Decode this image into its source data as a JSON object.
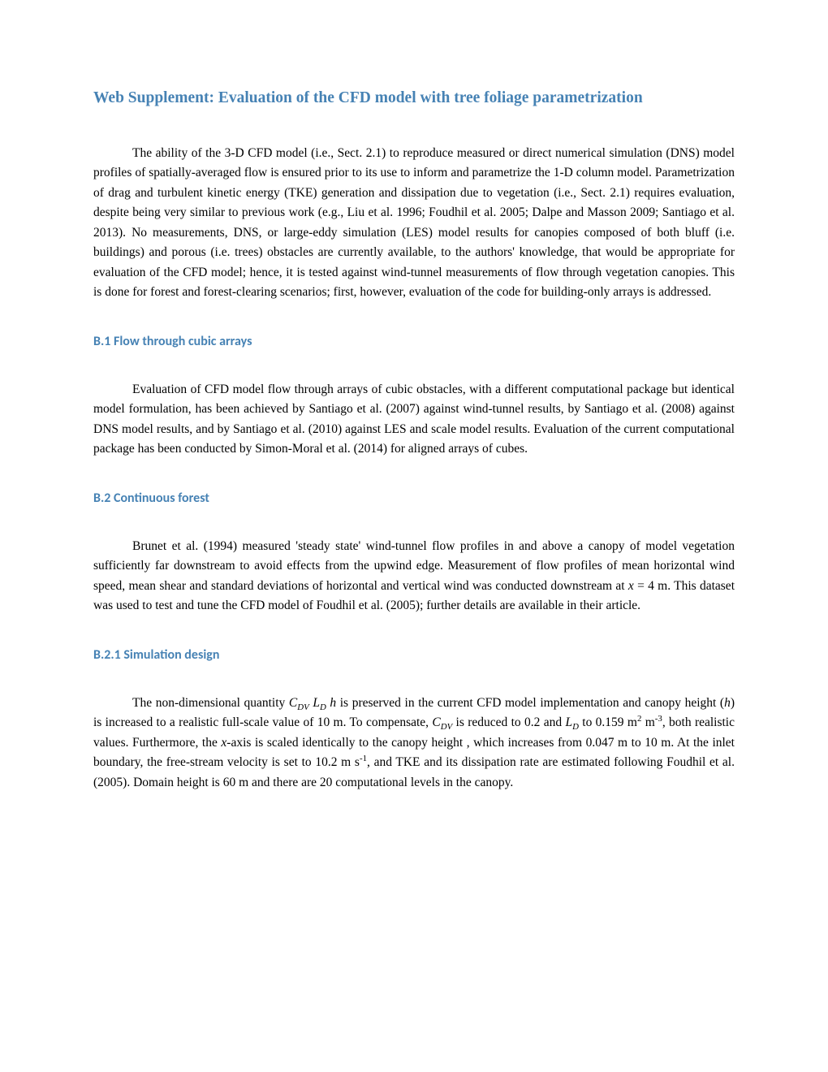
{
  "mainTitle": "Web Supplement: Evaluation of the CFD model with tree foliage parametrization",
  "intro": {
    "text": "The ability of the 3-D CFD model (i.e., Sect. 2.1) to reproduce measured or direct numerical simulation (DNS) model profiles of spatially-averaged flow is ensured prior to its use to inform and parametrize the 1-D column model. Parametrization of drag and turbulent kinetic energy (TKE) generation and dissipation due to vegetation (i.e., Sect. 2.1) requires evaluation, despite being very similar to previous work (e.g., Liu et al. 1996; Foudhil et al. 2005; Dalpe and Masson 2009; Santiago et al. 2013). No measurements, DNS, or large-eddy simulation (LES) model results for canopies composed of both bluff (i.e. buildings) and porous (i.e. trees) obstacles are currently available, to the authors' knowledge, that would be appropriate for evaluation of the CFD model; hence, it is tested against wind-tunnel measurements of flow through vegetation canopies. This is done for forest and forest-clearing scenarios; first, however, evaluation of the code for building-only arrays is addressed."
  },
  "sectionB1": {
    "title": "B.1 Flow through cubic arrays",
    "text": "Evaluation of CFD model flow through arrays of cubic obstacles, with a different computational package but identical model formulation, has been achieved by Santiago et al. (2007) against wind-tunnel results, by Santiago et al. (2008) against DNS model results, and by Santiago et al. (2010) against LES and scale model results. Evaluation of the current computational package has been conducted by Simon-Moral et al. (2014) for aligned arrays of cubes."
  },
  "sectionB2": {
    "title": "B.2 Continuous forest",
    "text_pre": "Brunet et al. (1994) measured 'steady state' wind-tunnel flow profiles in and above a canopy of model vegetation sufficiently far downstream to avoid effects from the upwind edge.  Measurement of flow profiles of mean horizontal wind speed, mean shear and standard deviations of horizontal and vertical wind was conducted downstream at ",
    "x_var": "x",
    "text_post": " = 4 m. This dataset was used to test and tune the CFD model of Foudhil et al. (2005); further details are available in their article."
  },
  "sectionB21": {
    "title": "B.2.1 Simulation design",
    "parts": {
      "p1": "The non-dimensional quantity ",
      "cdv1": "C",
      "cdv1_sub": "DV",
      "p2": " ",
      "ld1": "L",
      "ld1_sub": "D",
      "p3": " ",
      "h1": "h",
      "p4": " is preserved in the current CFD model implementation and canopy height (",
      "h2": "h",
      "p5": ") is increased to a realistic full-scale value of 10 m. To compensate, ",
      "cdv2": "C",
      "cdv2_sub": "DV",
      "p6": " is reduced to 0.2 and ",
      "ld2": "L",
      "ld2_sub": "D",
      "p7": " to 0.159 m",
      "sup1": "2",
      "p8": " m",
      "sup2": "-3",
      "p9": ", both realistic values. Furthermore, the ",
      "x2": "x",
      "p10": "-axis is scaled identically to the canopy height , which increases from 0.047 m to 10 m. At the inlet boundary, the free-stream velocity is set to 10.2 m s",
      "sup3": "-1",
      "p11": ", and TKE and its dissipation rate are estimated following Foudhil et al. (2005). Domain height is 60 m and there are 20 computational levels in the canopy."
    }
  },
  "colors": {
    "heading": "#4682b4",
    "text": "#000000",
    "background": "#ffffff"
  },
  "fonts": {
    "body": "Times New Roman",
    "section_heading": "Calibri",
    "body_size": 15.5,
    "main_title_size": 19.5,
    "section_title_size": 16
  }
}
